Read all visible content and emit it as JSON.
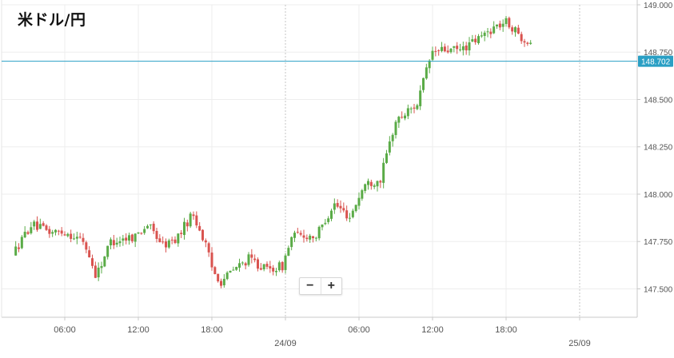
{
  "title": "米ドル/円",
  "zoom": {
    "minus_label": "−",
    "plus_label": "+"
  },
  "colors": {
    "up": "#5aab47",
    "down": "#d9534f",
    "current_line": "#2a9fc4",
    "current_label_bg": "#2a9fc4",
    "grid": "#ededed",
    "axis": "#c8c8c8",
    "text": "#555555"
  },
  "chart_data": {
    "type": "candlestick",
    "title": "米ドル/円",
    "current_price": 148.702,
    "current_price_label": "148.702",
    "ylim": [
      147.35,
      149.0
    ],
    "y_ticks": [
      {
        "value": 149.0,
        "label": "149.000"
      },
      {
        "value": 148.75,
        "label": "148.750"
      },
      {
        "value": 148.5,
        "label": "148.500"
      },
      {
        "value": 148.25,
        "label": "148.250"
      },
      {
        "value": 148.0,
        "label": "148.000"
      },
      {
        "value": 147.75,
        "label": "147.750"
      },
      {
        "value": 147.5,
        "label": "147.500"
      }
    ],
    "x_range_hours": [
      0,
      42.2
    ],
    "x_ticks": [
      {
        "hour": 4,
        "label": "06:00"
      },
      {
        "hour": 10,
        "label": "12:00"
      },
      {
        "hour": 16,
        "label": "18:00"
      },
      {
        "hour": 22,
        "label": "24/09",
        "date": true
      },
      {
        "hour": 28,
        "label": "06:00"
      },
      {
        "hour": 34,
        "label": "12:00"
      },
      {
        "hour": 40,
        "label": "18:00"
      },
      {
        "hour": 46,
        "label": "25/09",
        "date": true
      }
    ],
    "x_ticks_visible_labels": [
      "06:00",
      "12:00",
      "18:00",
      "24/09",
      "06:00",
      "12:00",
      "18:00",
      "25/09"
    ],
    "keypoints": [
      [
        0.0,
        147.68
      ],
      [
        1.5,
        147.84
      ],
      [
        3.0,
        147.8
      ],
      [
        4.3,
        147.8
      ],
      [
        5.8,
        147.75
      ],
      [
        6.8,
        147.57
      ],
      [
        8.0,
        147.75
      ],
      [
        10.0,
        147.78
      ],
      [
        11.0,
        147.84
      ],
      [
        12.3,
        147.73
      ],
      [
        13.3,
        147.76
      ],
      [
        14.7,
        147.9
      ],
      [
        15.7,
        147.74
      ],
      [
        16.3,
        147.6
      ],
      [
        17.0,
        147.54
      ],
      [
        18.0,
        147.6
      ],
      [
        19.3,
        147.66
      ],
      [
        20.7,
        147.6
      ],
      [
        22.0,
        147.62
      ],
      [
        22.8,
        147.78
      ],
      [
        24.8,
        147.78
      ],
      [
        26.2,
        147.95
      ],
      [
        27.5,
        147.88
      ],
      [
        28.7,
        148.05
      ],
      [
        30.0,
        148.08
      ],
      [
        31.2,
        148.38
      ],
      [
        33.0,
        148.48
      ],
      [
        34.2,
        148.75
      ],
      [
        35.1,
        148.76
      ],
      [
        36.5,
        148.76
      ],
      [
        38.0,
        148.82
      ],
      [
        39.2,
        148.88
      ],
      [
        40.3,
        148.91
      ],
      [
        41.3,
        148.84
      ],
      [
        42.7,
        148.79
      ],
      [
        44.0,
        148.66
      ],
      [
        44.7,
        148.78
      ],
      [
        45.3,
        148.69
      ],
      [
        46.4,
        148.7
      ]
    ]
  }
}
